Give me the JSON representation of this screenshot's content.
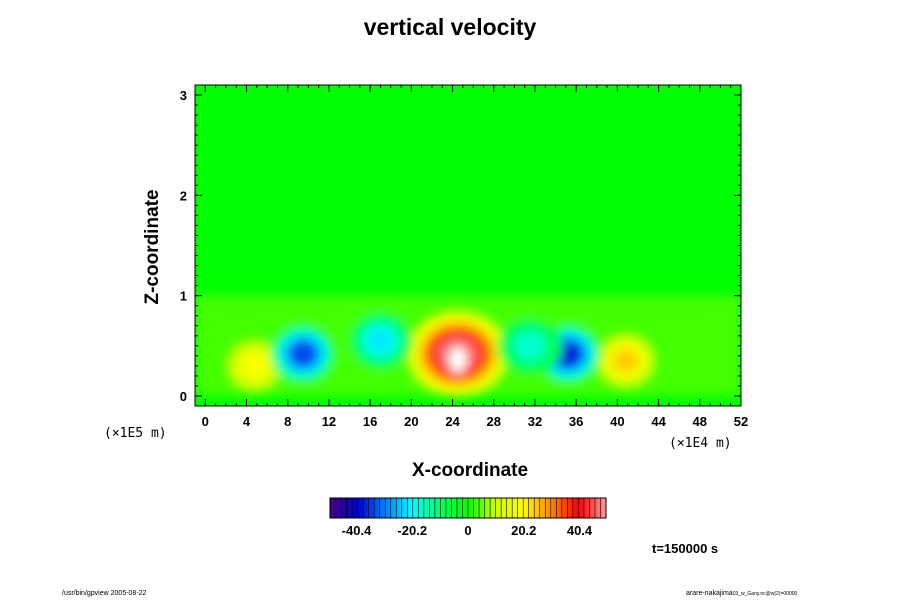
{
  "chart_data": {
    "type": "heatmap",
    "title": "vertical velocity",
    "xlabel": "X-coordinate",
    "ylabel": "Z-coordinate",
    "x_scale_note": "(×1E4 m)",
    "z_scale_note": "(×1E5 m)",
    "xlim": [
      -1,
      52
    ],
    "ylim": [
      -0.1,
      3.1
    ],
    "x_ticks": [
      0,
      4,
      8,
      12,
      16,
      20,
      24,
      28,
      32,
      36,
      40,
      44,
      48,
      52
    ],
    "z_ticks": [
      0,
      1,
      2,
      3
    ],
    "colorbar": {
      "min": -50,
      "max": 50,
      "tick_values": [
        -40.4,
        -20.2,
        0,
        20.2,
        40.4
      ],
      "tick_labels": [
        "-40.4",
        "-20.2",
        "0",
        "20.2",
        "40.4"
      ],
      "colors": [
        "#4b0082",
        "#0000cd",
        "#0080ff",
        "#00ffff",
        "#00ff66",
        "#00ff00",
        "#ccff00",
        "#ffff00",
        "#ff8800",
        "#ff0000",
        "#ff9999"
      ]
    },
    "background_value": 0,
    "features": [
      {
        "kind": "updraft",
        "x": 24.5,
        "z": 0.42,
        "peak": 55
      },
      {
        "kind": "updraft",
        "x": 40.8,
        "z": 0.35,
        "peak": 28
      },
      {
        "kind": "updraft",
        "x": 4.8,
        "z": 0.3,
        "peak": 22
      },
      {
        "kind": "downdraft",
        "x": 9.5,
        "z": 0.42,
        "peak": -40
      },
      {
        "kind": "downdraft",
        "x": 35.2,
        "z": 0.42,
        "peak": -44
      },
      {
        "kind": "downdraft",
        "x": 17.0,
        "z": 0.55,
        "peak": -25
      },
      {
        "kind": "downdraft",
        "x": 31.5,
        "z": 0.5,
        "peak": -20
      }
    ]
  },
  "time_label": "t=150000 s",
  "footer": {
    "left": "/usr/bin/gpview 2005-08-22",
    "right": "arare-nakajima",
    "right_small": "03_w_Gany.nc@w(2)=00000"
  }
}
